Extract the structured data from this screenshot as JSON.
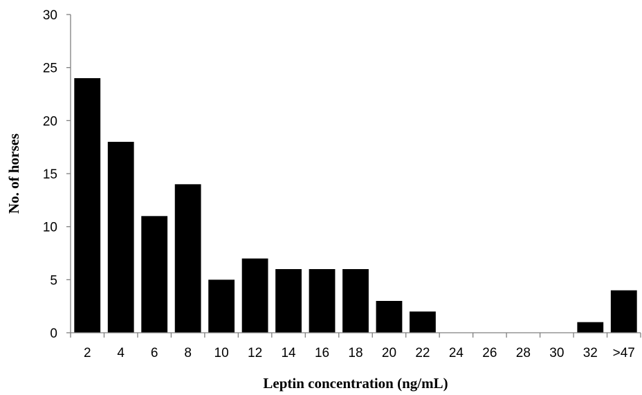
{
  "chart_data": {
    "type": "bar",
    "categories": [
      "2",
      "4",
      "6",
      "8",
      "10",
      "12",
      "14",
      "16",
      "18",
      "20",
      "22",
      "24",
      "26",
      "28",
      "30",
      "32",
      ">47"
    ],
    "values": [
      24,
      18,
      11,
      14,
      5,
      7,
      6,
      6,
      6,
      3,
      2,
      0,
      0,
      0,
      0,
      1,
      4
    ],
    "xlabel": "Leptin concentration (ng/mL)",
    "ylabel": "No. of horses",
    "ylim": [
      0,
      30
    ],
    "yticks": [
      "0",
      "5",
      "10",
      "15",
      "20",
      "25",
      "30"
    ],
    "grid": false,
    "legend": "none",
    "bar_color": "#000000"
  }
}
